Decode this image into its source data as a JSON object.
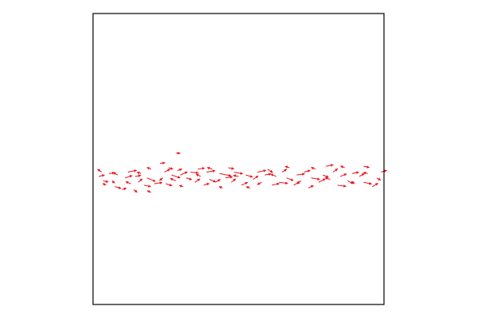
{
  "chart_data": {
    "type": "quiver",
    "title": "",
    "xlabel": "",
    "ylabel": "",
    "xlim": [
      0,
      1
    ],
    "ylim": [
      0,
      1
    ],
    "grid": false,
    "axes_ticks_visible": false,
    "legend": null,
    "colors": {
      "arrows": "#e8101a",
      "frame": "#000000",
      "background": "#ffffff"
    },
    "series": [
      {
        "vectors": [
          {
            "x": 0.02,
            "y": 0.44,
            "dx": 0.02,
            "dy": 0.005
          },
          {
            "x": 0.03,
            "y": 0.455,
            "dx": -0.015,
            "dy": 0.01
          },
          {
            "x": 0.035,
            "y": 0.425,
            "dx": 0.018,
            "dy": -0.004
          },
          {
            "x": 0.045,
            "y": 0.41,
            "dx": -0.012,
            "dy": 0.006
          },
          {
            "x": 0.055,
            "y": 0.45,
            "dx": 0.02,
            "dy": 0.003
          },
          {
            "x": 0.065,
            "y": 0.425,
            "dx": 0.01,
            "dy": -0.008
          },
          {
            "x": 0.075,
            "y": 0.405,
            "dx": 0.022,
            "dy": -0.006
          },
          {
            "x": 0.085,
            "y": 0.445,
            "dx": -0.016,
            "dy": 0.009
          },
          {
            "x": 0.1,
            "y": 0.395,
            "dx": 0.015,
            "dy": 0.005
          },
          {
            "x": 0.11,
            "y": 0.435,
            "dx": 0.025,
            "dy": 0.008
          },
          {
            "x": 0.12,
            "y": 0.455,
            "dx": 0.03,
            "dy": 0.006
          },
          {
            "x": 0.13,
            "y": 0.415,
            "dx": -0.018,
            "dy": 0.007
          },
          {
            "x": 0.14,
            "y": 0.395,
            "dx": 0.012,
            "dy": -0.01
          },
          {
            "x": 0.145,
            "y": 0.44,
            "dx": 0.02,
            "dy": 0.004
          },
          {
            "x": 0.155,
            "y": 0.42,
            "dx": 0.015,
            "dy": 0.012
          },
          {
            "x": 0.165,
            "y": 0.45,
            "dx": -0.014,
            "dy": 0.005
          },
          {
            "x": 0.175,
            "y": 0.41,
            "dx": 0.024,
            "dy": -0.005
          },
          {
            "x": 0.185,
            "y": 0.435,
            "dx": 0.03,
            "dy": -0.012
          },
          {
            "x": 0.2,
            "y": 0.465,
            "dx": -0.015,
            "dy": 0.006
          },
          {
            "x": 0.21,
            "y": 0.415,
            "dx": 0.028,
            "dy": 0.004
          },
          {
            "x": 0.23,
            "y": 0.485,
            "dx": 0.018,
            "dy": 0.002
          },
          {
            "x": 0.24,
            "y": 0.435,
            "dx": -0.012,
            "dy": -0.009
          },
          {
            "x": 0.245,
            "y": 0.455,
            "dx": 0.02,
            "dy": 0.01
          },
          {
            "x": 0.25,
            "y": 0.415,
            "dx": 0.022,
            "dy": -0.007
          },
          {
            "x": 0.26,
            "y": 0.47,
            "dx": 0.015,
            "dy": -0.005
          },
          {
            "x": 0.27,
            "y": 0.445,
            "dx": 0.03,
            "dy": -0.01
          },
          {
            "x": 0.285,
            "y": 0.425,
            "dx": -0.02,
            "dy": 0.008
          },
          {
            "x": 0.29,
            "y": 0.46,
            "dx": 0.016,
            "dy": 0.006
          },
          {
            "x": 0.3,
            "y": 0.445,
            "dx": 0.025,
            "dy": 0.011
          },
          {
            "x": 0.31,
            "y": 0.405,
            "dx": -0.014,
            "dy": 0.004
          },
          {
            "x": 0.32,
            "y": 0.435,
            "dx": 0.02,
            "dy": -0.006
          },
          {
            "x": 0.335,
            "y": 0.455,
            "dx": 0.028,
            "dy": -0.003
          },
          {
            "x": 0.35,
            "y": 0.42,
            "dx": 0.018,
            "dy": 0.012
          },
          {
            "x": 0.36,
            "y": 0.465,
            "dx": 0.024,
            "dy": 0.004
          },
          {
            "x": 0.37,
            "y": 0.44,
            "dx": -0.016,
            "dy": 0.008
          },
          {
            "x": 0.38,
            "y": 0.41,
            "dx": 0.02,
            "dy": 0.006
          },
          {
            "x": 0.39,
            "y": 0.455,
            "dx": 0.03,
            "dy": 0.005
          },
          {
            "x": 0.4,
            "y": 0.43,
            "dx": 0.022,
            "dy": -0.009
          },
          {
            "x": 0.41,
            "y": 0.465,
            "dx": -0.018,
            "dy": 0.006
          },
          {
            "x": 0.42,
            "y": 0.42,
            "dx": 0.018,
            "dy": 0.01
          },
          {
            "x": 0.435,
            "y": 0.45,
            "dx": 0.04,
            "dy": -0.008
          },
          {
            "x": 0.445,
            "y": 0.4,
            "dx": -0.012,
            "dy": 0.006
          },
          {
            "x": 0.455,
            "y": 0.435,
            "dx": 0.025,
            "dy": 0.004
          },
          {
            "x": 0.465,
            "y": 0.47,
            "dx": 0.02,
            "dy": -0.004
          },
          {
            "x": 0.475,
            "y": 0.42,
            "dx": 0.016,
            "dy": 0.012
          },
          {
            "x": 0.485,
            "y": 0.455,
            "dx": 0.03,
            "dy": -0.006
          },
          {
            "x": 0.5,
            "y": 0.44,
            "dx": -0.018,
            "dy": 0.004
          },
          {
            "x": 0.51,
            "y": 0.41,
            "dx": 0.022,
            "dy": 0.01
          },
          {
            "x": 0.525,
            "y": 0.445,
            "dx": 0.024,
            "dy": -0.007
          },
          {
            "x": 0.54,
            "y": 0.4,
            "dx": -0.014,
            "dy": 0.005
          },
          {
            "x": 0.55,
            "y": 0.43,
            "dx": 0.018,
            "dy": 0.012
          },
          {
            "x": 0.565,
            "y": 0.455,
            "dx": 0.03,
            "dy": 0.006
          },
          {
            "x": 0.58,
            "y": 0.42,
            "dx": -0.016,
            "dy": -0.008
          },
          {
            "x": 0.59,
            "y": 0.445,
            "dx": 0.022,
            "dy": 0.004
          },
          {
            "x": 0.6,
            "y": 0.465,
            "dx": 0.018,
            "dy": -0.012
          },
          {
            "x": 0.615,
            "y": 0.41,
            "dx": 0.026,
            "dy": 0.006
          },
          {
            "x": 0.63,
            "y": 0.44,
            "dx": -0.02,
            "dy": 0.008
          },
          {
            "x": 0.64,
            "y": 0.42,
            "dx": 0.03,
            "dy": -0.004
          },
          {
            "x": 0.65,
            "y": 0.455,
            "dx": 0.016,
            "dy": 0.01
          },
          {
            "x": 0.665,
            "y": 0.435,
            "dx": 0.024,
            "dy": -0.009
          },
          {
            "x": 0.675,
            "y": 0.47,
            "dx": -0.015,
            "dy": 0.005
          },
          {
            "x": 0.69,
            "y": 0.41,
            "dx": 0.02,
            "dy": 0.012
          },
          {
            "x": 0.7,
            "y": 0.445,
            "dx": 0.028,
            "dy": 0.004
          },
          {
            "x": 0.715,
            "y": 0.425,
            "dx": -0.014,
            "dy": -0.01
          },
          {
            "x": 0.725,
            "y": 0.455,
            "dx": 0.022,
            "dy": 0.006
          },
          {
            "x": 0.74,
            "y": 0.4,
            "dx": 0.018,
            "dy": 0.009
          },
          {
            "x": 0.75,
            "y": 0.435,
            "dx": 0.03,
            "dy": -0.005
          },
          {
            "x": 0.765,
            "y": 0.465,
            "dx": -0.016,
            "dy": 0.006
          },
          {
            "x": 0.775,
            "y": 0.42,
            "dx": 0.024,
            "dy": 0.012
          },
          {
            "x": 0.79,
            "y": 0.445,
            "dx": 0.02,
            "dy": -0.008
          },
          {
            "x": 0.8,
            "y": 0.475,
            "dx": 0.026,
            "dy": 0.005
          },
          {
            "x": 0.815,
            "y": 0.43,
            "dx": -0.018,
            "dy": 0.006
          },
          {
            "x": 0.825,
            "y": 0.455,
            "dx": 0.016,
            "dy": 0.012
          },
          {
            "x": 0.84,
            "y": 0.41,
            "dx": 0.03,
            "dy": -0.004
          },
          {
            "x": 0.85,
            "y": 0.44,
            "dx": 0.022,
            "dy": 0.009
          },
          {
            "x": 0.865,
            "y": 0.47,
            "dx": -0.015,
            "dy": 0.006
          },
          {
            "x": 0.875,
            "y": 0.425,
            "dx": 0.02,
            "dy": -0.01
          },
          {
            "x": 0.89,
            "y": 0.45,
            "dx": 0.024,
            "dy": 0.005
          },
          {
            "x": 0.9,
            "y": 0.415,
            "dx": -0.012,
            "dy": 0.008
          },
          {
            "x": 0.915,
            "y": 0.44,
            "dx": 0.018,
            "dy": 0.01
          },
          {
            "x": 0.93,
            "y": 0.42,
            "dx": 0.028,
            "dy": -0.006
          },
          {
            "x": 0.945,
            "y": 0.45,
            "dx": -0.016,
            "dy": 0.004
          },
          {
            "x": 0.96,
            "y": 0.405,
            "dx": 0.02,
            "dy": 0.012
          },
          {
            "x": 0.975,
            "y": 0.435,
            "dx": 0.014,
            "dy": -0.008
          },
          {
            "x": 0.99,
            "y": 0.455,
            "dx": 0.02,
            "dy": 0.006
          },
          {
            "x": 0.285,
            "y": 0.52,
            "dx": 0.015,
            "dy": 0.0
          },
          {
            "x": 0.93,
            "y": 0.475,
            "dx": 0.02,
            "dy": -0.004
          },
          {
            "x": 0.2,
            "y": 0.385,
            "dx": -0.014,
            "dy": 0.006
          }
        ]
      }
    ]
  }
}
